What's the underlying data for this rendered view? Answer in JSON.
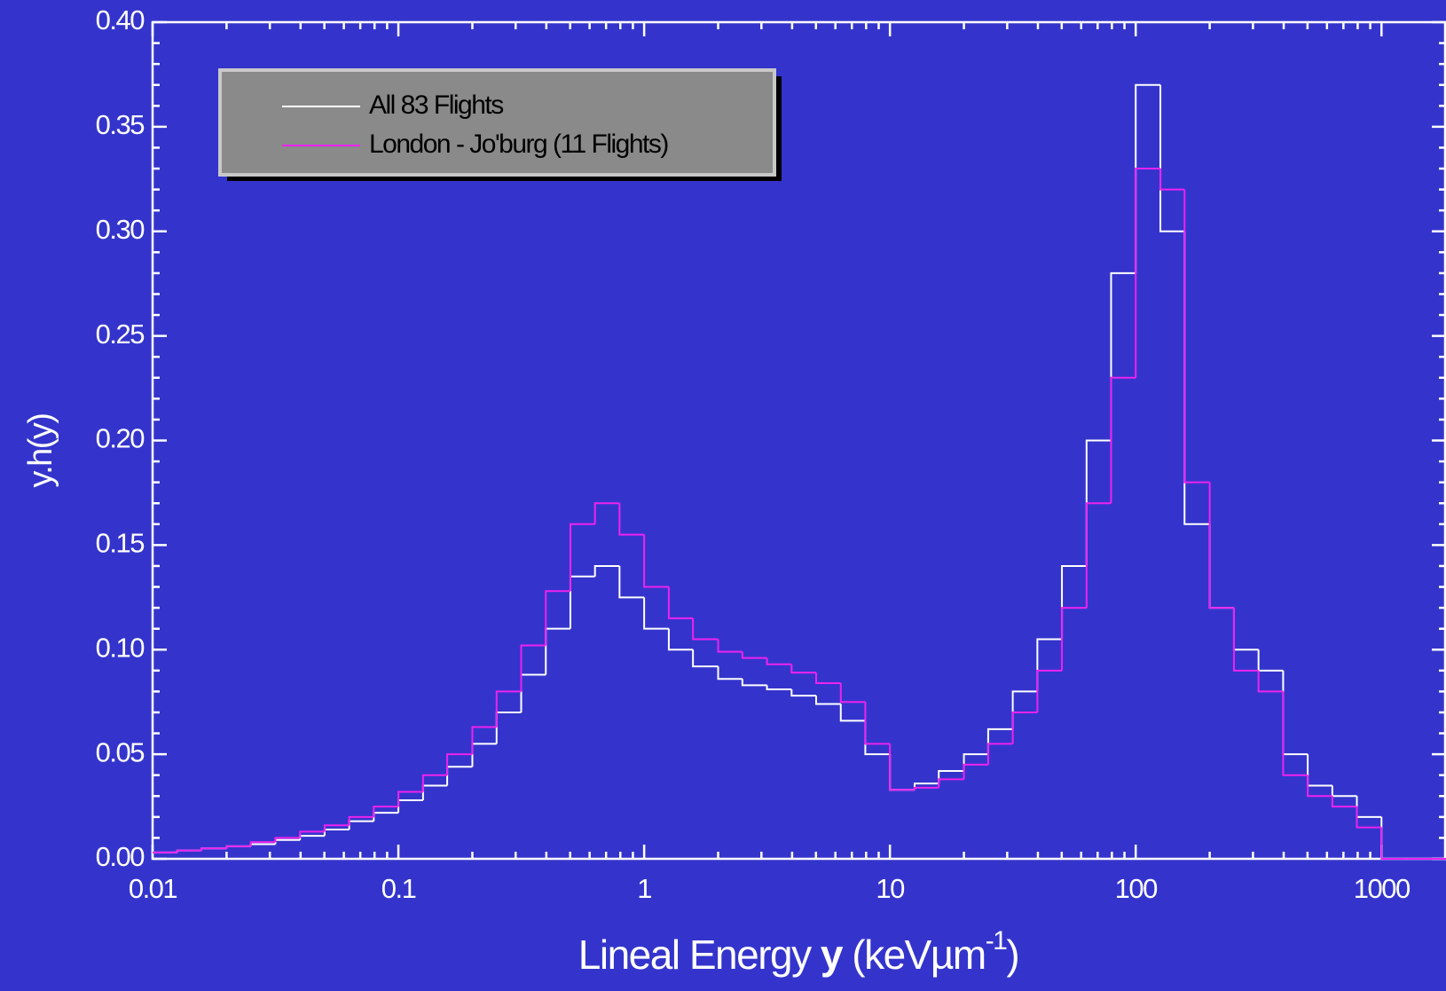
{
  "chart_data": {
    "type": "step",
    "x_label": [
      "Lineal Energy ",
      "y",
      " (keV",
      "µm",
      "-1",
      ")"
    ],
    "y_label": "y.h(y)",
    "log_x": true,
    "x": [
      0.01,
      0.0126,
      0.0158,
      0.02,
      0.0251,
      0.0316,
      0.0398,
      0.0501,
      0.0631,
      0.0794,
      0.1,
      0.126,
      0.158,
      0.2,
      0.251,
      0.316,
      0.398,
      0.501,
      0.631,
      0.794,
      1,
      1.26,
      1.58,
      2,
      2.51,
      3.16,
      3.98,
      5.01,
      6.31,
      7.94,
      10,
      12.6,
      15.8,
      20,
      25.1,
      31.6,
      39.8,
      50.1,
      63.1,
      79.4,
      100,
      126,
      158,
      200,
      251,
      316,
      398,
      501,
      631,
      794,
      1000,
      1260
    ],
    "series": [
      {
        "name": "All 83 Flights",
        "color": "#ffffff",
        "values": [
          0.003,
          0.004,
          0.005,
          0.006,
          0.007,
          0.009,
          0.011,
          0.014,
          0.018,
          0.022,
          0.028,
          0.035,
          0.044,
          0.055,
          0.07,
          0.088,
          0.11,
          0.135,
          0.14,
          0.125,
          0.11,
          0.1,
          0.092,
          0.086,
          0.083,
          0.081,
          0.078,
          0.074,
          0.066,
          0.05,
          0.033,
          0.036,
          0.042,
          0.05,
          0.062,
          0.08,
          0.105,
          0.14,
          0.2,
          0.28,
          0.37,
          0.3,
          0.16,
          0.12,
          0.1,
          0.09,
          0.05,
          0.035,
          0.03,
          0.02,
          0,
          0
        ]
      },
      {
        "name": "London - Jo'burg (11 Flights)",
        "color": "#ee22ee",
        "values": [
          0.003,
          0.004,
          0.005,
          0.006,
          0.008,
          0.01,
          0.013,
          0.016,
          0.02,
          0.025,
          0.032,
          0.04,
          0.05,
          0.063,
          0.08,
          0.102,
          0.128,
          0.16,
          0.17,
          0.155,
          0.13,
          0.115,
          0.105,
          0.099,
          0.096,
          0.093,
          0.089,
          0.084,
          0.075,
          0.055,
          0.033,
          0.034,
          0.038,
          0.045,
          0.055,
          0.07,
          0.09,
          0.12,
          0.17,
          0.23,
          0.33,
          0.32,
          0.18,
          0.12,
          0.09,
          0.08,
          0.04,
          0.03,
          0.025,
          0.015,
          0,
          0
        ]
      }
    ],
    "xlim": [
      0.01,
      1830
    ],
    "xticks": [
      0.01,
      0.1,
      1,
      10,
      100,
      1000
    ],
    "ylim": [
      0,
      0.4
    ],
    "yticks": [
      {
        "value": 0,
        "label": "0.00"
      },
      {
        "value": 0.05,
        "label": "0.05"
      },
      {
        "value": 0.1,
        "label": "0.10"
      },
      {
        "value": 0.15,
        "label": "0.15"
      },
      {
        "value": 0.2,
        "label": "0.20"
      },
      {
        "value": 0.25,
        "label": "0.25"
      },
      {
        "value": 0.3,
        "label": "0.30"
      },
      {
        "value": 0.35,
        "label": "0.35"
      },
      {
        "value": 0.4,
        "label": "0.40"
      }
    ],
    "legend": "upper left"
  }
}
